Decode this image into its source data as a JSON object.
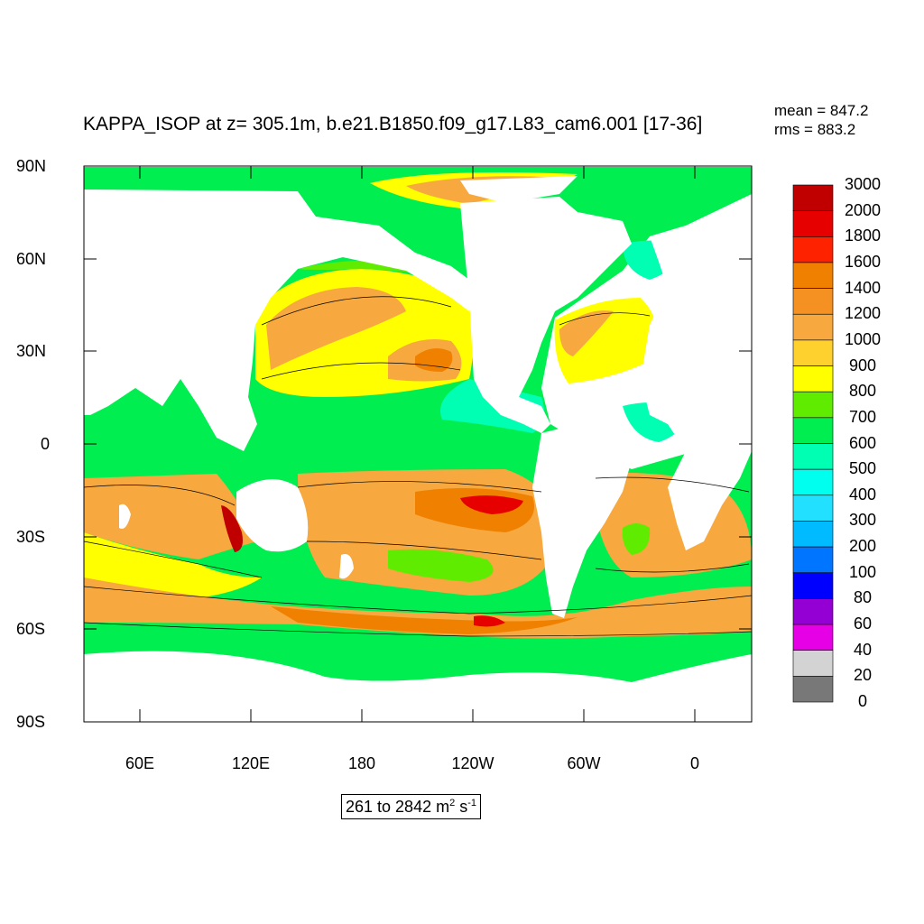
{
  "title": "KAPPA_ISOP at z= 305.1m, b.e21.B1850.f09_g17.L83_cam6.001 [17-36]",
  "stats": {
    "mean": "mean = 847.2",
    "rms": "rms = 883.2"
  },
  "lat_labels": [
    "90N",
    "60N",
    "30N",
    "0",
    "30S",
    "60S",
    "90S"
  ],
  "lon_labels": [
    "60E",
    "120E",
    "180",
    "120W",
    "60W",
    "0"
  ],
  "units": {
    "prefix": "261 to 2842 m",
    "exp1": "2",
    "mid": " s",
    "exp2": "-1"
  },
  "colorbar": {
    "labels": [
      "3000",
      "2000",
      "1800",
      "1600",
      "1400",
      "1200",
      "1000",
      "900",
      "800",
      "700",
      "600",
      "500",
      "400",
      "300",
      "200",
      "100",
      "80",
      "60",
      "40",
      "20",
      "0"
    ],
    "colors": [
      "#c00000",
      "#e60000",
      "#ff2200",
      "#f08000",
      "#f59022",
      "#f7a83e",
      "#ffd12e",
      "#ffff00",
      "#60ec00",
      "#00ee50",
      "#00ffb2",
      "#00ffee",
      "#22e0ff",
      "#00bbff",
      "#0075ff",
      "#0000ff",
      "#9400d3",
      "#e600e6",
      "#d3d3d3",
      "#787878"
    ]
  },
  "colors": {
    "ocean_base": "#00ee50",
    "land": "#ffffff"
  }
}
